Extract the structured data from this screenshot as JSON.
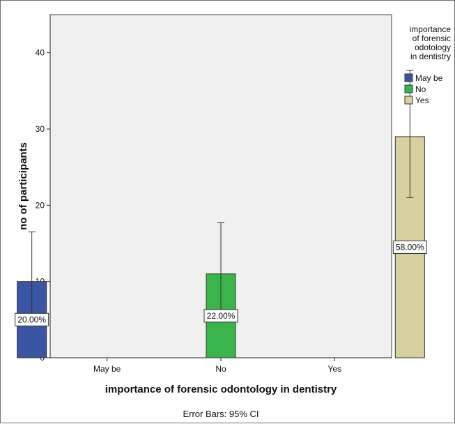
{
  "chart_data": {
    "type": "bar",
    "categories": [
      "May be",
      "No",
      "Yes"
    ],
    "series": [
      {
        "name": "May be",
        "color": "#3a55a4",
        "values": [
          10,
          null,
          null
        ],
        "labels": [
          "20.00%",
          null,
          null
        ],
        "ci": [
          [
            5.5,
            16.5
          ],
          null,
          null
        ]
      },
      {
        "name": "No",
        "color": "#39b54a",
        "values": [
          null,
          11,
          null
        ],
        "labels": [
          null,
          "22.00%",
          null
        ],
        "ci": [
          null,
          [
            6.0,
            17.7
          ],
          null
        ]
      },
      {
        "name": "Yes",
        "color": "#d7d1a0",
        "values": [
          null,
          null,
          29
        ],
        "labels": [
          null,
          null,
          "58.00%"
        ],
        "ci": [
          null,
          null,
          [
            21.0,
            37.7
          ]
        ]
      }
    ],
    "xlabel": "importance of forensic odontology in dentistry",
    "ylabel": "no of participants",
    "ylim": [
      0,
      45
    ],
    "yticks": [
      0,
      10,
      20,
      30,
      40
    ],
    "legend_title": "importance of forensic odontology in dentistry",
    "legend_title_lines": [
      "importance",
      "of forensic",
      "odotology",
      "in dentistry"
    ],
    "legend_position": "right",
    "footer": "Error Bars: 95% CI",
    "plot_background": "#f0f0f0",
    "grid": false
  }
}
